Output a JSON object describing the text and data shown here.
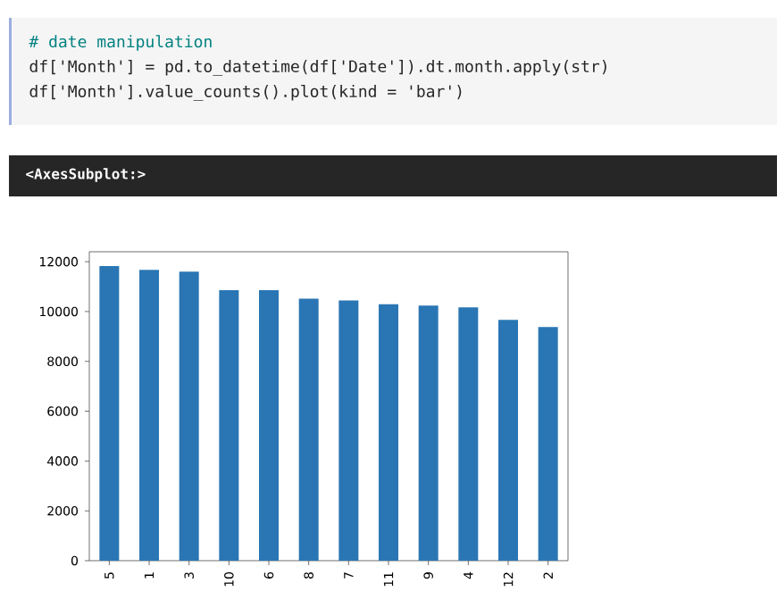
{
  "chart_data": {
    "type": "bar",
    "annotations": [
      "# date manipulation",
      "df['Month'] = pd.to_datetime(df['Date']).dt.month.apply(str)",
      "df['Month'].value_counts().plot(kind = 'bar')",
      "<AxesSubplot:>"
    ],
    "categories": [
      "5",
      "1",
      "3",
      "10",
      "6",
      "8",
      "7",
      "11",
      "9",
      "4",
      "12",
      "2"
    ],
    "values": [
      11830,
      11670,
      11600,
      10860,
      10860,
      10520,
      10450,
      10290,
      10240,
      10170,
      9670,
      9380
    ],
    "color": "#2a76b4",
    "ylim": [
      0,
      12400
    ],
    "yticks": [
      0,
      2000,
      4000,
      6000,
      8000,
      10000,
      12000
    ]
  }
}
